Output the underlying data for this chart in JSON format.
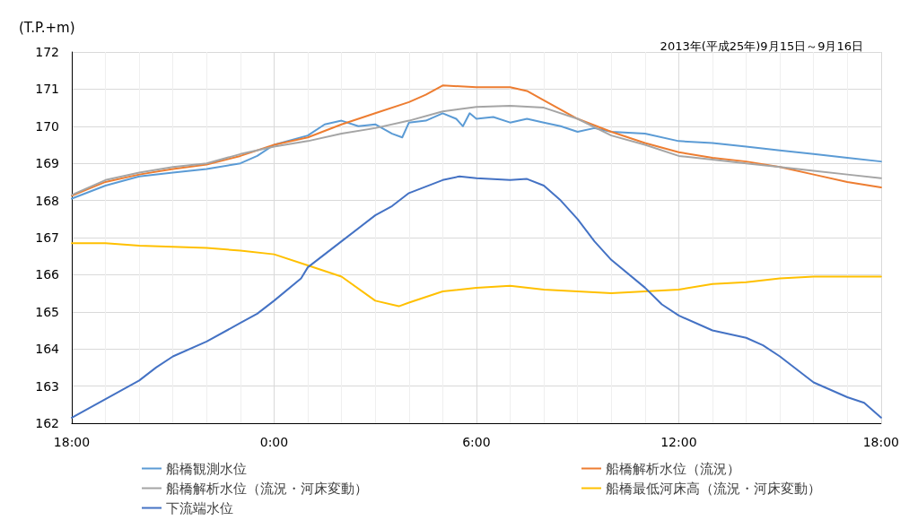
{
  "chart_data": {
    "type": "line",
    "subtitle": "2013年(平成25年)9月15日～9月16日",
    "ylabel": "(T.P.+m)",
    "xlim": [
      "2013-09-15T18:00",
      "2013-09-16T18:00"
    ],
    "xticks": [
      {
        "value": "2013-09-15T18:00",
        "label": "18:00"
      },
      {
        "value": "2013-09-16T00:00",
        "label": "0:00"
      },
      {
        "value": "2013-09-16T06:00",
        "label": "6:00"
      },
      {
        "value": "2013-09-16T12:00",
        "label": "12:00"
      },
      {
        "value": "2013-09-16T18:00",
        "label": "18:00"
      }
    ],
    "ylim": [
      162,
      172
    ],
    "yticks": [
      162,
      163,
      164,
      165,
      166,
      167,
      168,
      169,
      170,
      171,
      172
    ],
    "grid": true,
    "legend": "bottom",
    "marker": "none",
    "line_style": "solid",
    "series": [
      {
        "name": "船橋観測水位",
        "color": "#5b9bd5",
        "x": [
          "2013-09-15T18:00",
          "2013-09-15T19:00",
          "2013-09-15T20:00",
          "2013-09-15T21:00",
          "2013-09-15T22:00",
          "2013-09-15T23:00",
          "2013-09-15T23:30",
          "2013-09-16T00:00",
          "2013-09-16T01:00",
          "2013-09-16T01:30",
          "2013-09-16T02:00",
          "2013-09-16T02:30",
          "2013-09-16T03:00",
          "2013-09-16T03:30",
          "2013-09-16T03:48",
          "2013-09-16T04:00",
          "2013-09-16T04:30",
          "2013-09-16T05:00",
          "2013-09-16T05:24",
          "2013-09-16T05:36",
          "2013-09-16T05:48",
          "2013-09-16T06:00",
          "2013-09-16T06:30",
          "2013-09-16T07:00",
          "2013-09-16T07:30",
          "2013-09-16T08:00",
          "2013-09-16T08:30",
          "2013-09-16T09:00",
          "2013-09-16T09:30",
          "2013-09-16T10:00",
          "2013-09-16T11:00",
          "2013-09-16T12:00",
          "2013-09-16T13:00",
          "2013-09-16T14:00",
          "2013-09-16T15:00",
          "2013-09-16T16:00",
          "2013-09-16T17:00",
          "2013-09-16T18:00"
        ],
        "values": [
          168.05,
          168.4,
          168.65,
          168.75,
          168.85,
          169.0,
          169.2,
          169.5,
          169.75,
          170.05,
          170.15,
          170.0,
          170.05,
          169.8,
          169.7,
          170.1,
          170.15,
          170.35,
          170.2,
          170.0,
          170.35,
          170.2,
          170.25,
          170.1,
          170.2,
          170.1,
          170.0,
          169.85,
          169.95,
          169.85,
          169.8,
          169.6,
          169.55,
          169.45,
          169.35,
          169.25,
          169.15,
          169.05
        ]
      },
      {
        "name": "船橋解析水位（流況）",
        "color": "#ed7d31",
        "x": [
          "2013-09-15T18:00",
          "2013-09-15T19:00",
          "2013-09-15T20:00",
          "2013-09-15T21:00",
          "2013-09-15T22:00",
          "2013-09-15T23:00",
          "2013-09-16T00:00",
          "2013-09-16T01:00",
          "2013-09-16T02:00",
          "2013-09-16T03:00",
          "2013-09-16T04:00",
          "2013-09-16T04:30",
          "2013-09-16T05:00",
          "2013-09-16T06:00",
          "2013-09-16T07:00",
          "2013-09-16T07:30",
          "2013-09-16T08:00",
          "2013-09-16T09:00",
          "2013-09-16T10:00",
          "2013-09-16T11:00",
          "2013-09-16T12:00",
          "2013-09-16T13:00",
          "2013-09-16T14:00",
          "2013-09-16T15:00",
          "2013-09-16T16:00",
          "2013-09-16T17:00",
          "2013-09-16T18:00"
        ],
        "values": [
          168.13,
          168.5,
          168.7,
          168.85,
          168.97,
          169.2,
          169.5,
          169.7,
          170.05,
          170.35,
          170.65,
          170.85,
          171.1,
          171.05,
          171.05,
          170.95,
          170.7,
          170.2,
          169.85,
          169.55,
          169.3,
          169.15,
          169.05,
          168.9,
          168.7,
          168.5,
          168.35
        ]
      },
      {
        "name": "船橋解析水位（流況・河床変動）",
        "color": "#a5a5a5",
        "x": [
          "2013-09-15T18:00",
          "2013-09-15T19:00",
          "2013-09-15T20:00",
          "2013-09-15T21:00",
          "2013-09-15T22:00",
          "2013-09-15T23:00",
          "2013-09-16T00:00",
          "2013-09-16T01:00",
          "2013-09-16T02:00",
          "2013-09-16T03:00",
          "2013-09-16T04:00",
          "2013-09-16T05:00",
          "2013-09-16T06:00",
          "2013-09-16T07:00",
          "2013-09-16T08:00",
          "2013-09-16T09:00",
          "2013-09-16T10:00",
          "2013-09-16T11:00",
          "2013-09-16T12:00",
          "2013-09-16T13:00",
          "2013-09-16T14:00",
          "2013-09-16T15:00",
          "2013-09-16T16:00",
          "2013-09-16T17:00",
          "2013-09-16T18:00"
        ],
        "values": [
          168.15,
          168.55,
          168.75,
          168.9,
          169.0,
          169.25,
          169.45,
          169.6,
          169.8,
          169.95,
          170.15,
          170.4,
          170.52,
          170.55,
          170.5,
          170.2,
          169.75,
          169.5,
          169.2,
          169.1,
          169.0,
          168.9,
          168.8,
          168.7,
          168.6
        ]
      },
      {
        "name": "船橋最低河床高（流況・河床変動）",
        "color": "#ffc000",
        "x": [
          "2013-09-15T18:00",
          "2013-09-15T19:00",
          "2013-09-15T20:00",
          "2013-09-15T22:00",
          "2013-09-15T23:00",
          "2013-09-16T00:00",
          "2013-09-16T01:00",
          "2013-09-16T02:00",
          "2013-09-16T03:00",
          "2013-09-16T03:42",
          "2013-09-16T04:00",
          "2013-09-16T05:00",
          "2013-09-16T06:00",
          "2013-09-16T07:00",
          "2013-09-16T08:00",
          "2013-09-16T09:00",
          "2013-09-16T10:00",
          "2013-09-16T11:00",
          "2013-09-16T12:00",
          "2013-09-16T13:00",
          "2013-09-16T14:00",
          "2013-09-16T15:00",
          "2013-09-16T16:00",
          "2013-09-16T18:00"
        ],
        "values": [
          166.85,
          166.85,
          166.78,
          166.72,
          166.65,
          166.55,
          166.25,
          165.95,
          165.3,
          165.15,
          165.25,
          165.55,
          165.65,
          165.7,
          165.6,
          165.55,
          165.5,
          165.55,
          165.6,
          165.75,
          165.8,
          165.9,
          165.95,
          165.95
        ]
      },
      {
        "name": "下流端水位",
        "color": "#4472c4",
        "x": [
          "2013-09-15T18:00",
          "2013-09-15T19:00",
          "2013-09-15T20:00",
          "2013-09-15T20:30",
          "2013-09-15T21:00",
          "2013-09-15T22:00",
          "2013-09-15T23:00",
          "2013-09-15T23:30",
          "2013-09-16T00:00",
          "2013-09-16T00:48",
          "2013-09-16T01:00",
          "2013-09-16T02:00",
          "2013-09-16T03:00",
          "2013-09-16T03:30",
          "2013-09-16T04:00",
          "2013-09-16T05:00",
          "2013-09-16T05:30",
          "2013-09-16T06:00",
          "2013-09-16T07:00",
          "2013-09-16T07:30",
          "2013-09-16T08:00",
          "2013-09-16T08:30",
          "2013-09-16T09:00",
          "2013-09-16T09:30",
          "2013-09-16T10:00",
          "2013-09-16T11:00",
          "2013-09-16T11:30",
          "2013-09-16T12:00",
          "2013-09-16T13:00",
          "2013-09-16T14:00",
          "2013-09-16T14:30",
          "2013-09-16T15:00",
          "2013-09-16T16:00",
          "2013-09-16T17:00",
          "2013-09-16T17:30",
          "2013-09-16T18:00"
        ],
        "values": [
          162.15,
          162.65,
          163.15,
          163.5,
          163.8,
          164.2,
          164.7,
          164.95,
          165.3,
          165.9,
          166.2,
          166.9,
          167.6,
          167.85,
          168.2,
          168.55,
          168.65,
          168.6,
          168.55,
          168.58,
          168.4,
          168.0,
          167.5,
          166.9,
          166.4,
          165.65,
          165.2,
          164.9,
          164.5,
          164.3,
          164.1,
          163.8,
          163.1,
          162.7,
          162.55,
          162.15
        ]
      }
    ]
  }
}
